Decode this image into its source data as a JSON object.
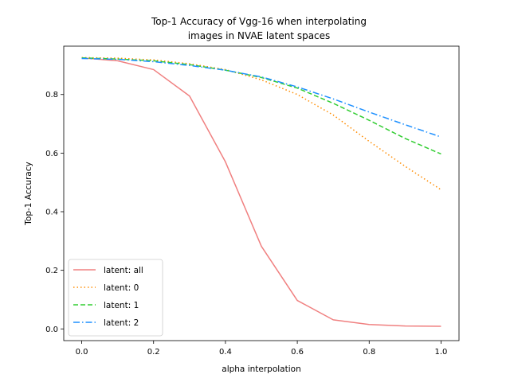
{
  "chart_data": {
    "type": "line",
    "title": [
      "Top-1 Accuracy of Vgg-16 when interpolating",
      "images in NVAE latent spaces"
    ],
    "xlabel": "alpha interpolation",
    "ylabel": "Top-1 Accuracy",
    "xlim": [
      -0.05,
      1.05
    ],
    "ylim": [
      -0.04,
      0.965
    ],
    "xticks": [
      0.0,
      0.2,
      0.4,
      0.6,
      0.8,
      1.0
    ],
    "xtick_labels": [
      "0.0",
      "0.2",
      "0.4",
      "0.6",
      "0.8",
      "1.0"
    ],
    "yticks": [
      0.0,
      0.2,
      0.4,
      0.6,
      0.8
    ],
    "ytick_labels": [
      "0.0",
      "0.2",
      "0.4",
      "0.6",
      "0.8"
    ],
    "grid": false,
    "legend_position": "lower-left",
    "x": [
      0.0,
      0.1,
      0.2,
      0.3,
      0.4,
      0.5,
      0.6,
      0.7,
      0.8,
      0.9,
      1.0
    ],
    "series": [
      {
        "name": "latent: all",
        "color": "#f08080",
        "dash": "solid",
        "values": [
          0.925,
          0.915,
          0.885,
          0.795,
          0.57,
          0.282,
          0.097,
          0.031,
          0.015,
          0.01,
          0.009
        ]
      },
      {
        "name": "latent: 0",
        "color": "#ff8c00",
        "dash": "dotted",
        "values": [
          0.926,
          0.924,
          0.918,
          0.905,
          0.885,
          0.85,
          0.8,
          0.73,
          0.64,
          0.555,
          0.475
        ]
      },
      {
        "name": "latent: 1",
        "color": "#32cd32",
        "dash": "dashed",
        "values": [
          0.925,
          0.921,
          0.915,
          0.902,
          0.883,
          0.858,
          0.822,
          0.77,
          0.712,
          0.65,
          0.597
        ]
      },
      {
        "name": "latent: 2",
        "color": "#1e90ff",
        "dash": "dashdot",
        "values": [
          0.923,
          0.92,
          0.912,
          0.899,
          0.883,
          0.86,
          0.826,
          0.785,
          0.74,
          0.697,
          0.655
        ]
      }
    ]
  }
}
